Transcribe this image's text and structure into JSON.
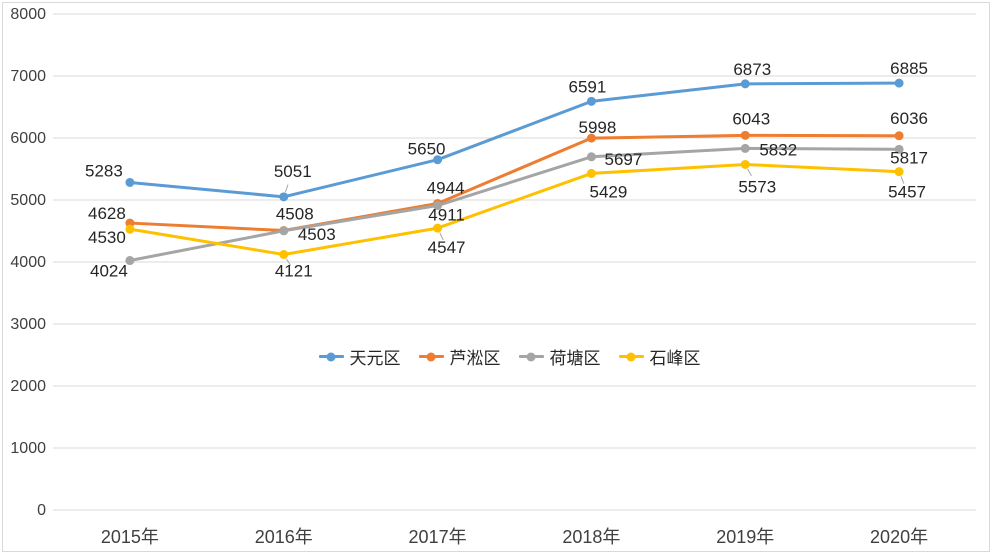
{
  "chart_data": {
    "type": "line",
    "categories": [
      "2015年",
      "2016年",
      "2017年",
      "2018年",
      "2019年",
      "2020年"
    ],
    "yticks": [
      0,
      1000,
      2000,
      3000,
      4000,
      5000,
      6000,
      7000,
      8000
    ],
    "ylim": [
      0,
      8000
    ],
    "grid": true,
    "data_labels": true,
    "legend_position": "center-middle",
    "series": [
      {
        "name": "天元区",
        "color": "#5B9BD5",
        "values": [
          5283,
          5051,
          5650,
          6591,
          6873,
          6885
        ]
      },
      {
        "name": "芦淞区",
        "color": "#ED7D31",
        "values": [
          4628,
          4508,
          4944,
          5998,
          6043,
          6036
        ]
      },
      {
        "name": "荷塘区",
        "color": "#A5A5A5",
        "values": [
          4024,
          4503,
          4911,
          5697,
          5832,
          5817
        ]
      },
      {
        "name": "石峰区",
        "color": "#FFC000",
        "values": [
          4530,
          4121,
          4547,
          5429,
          5573,
          5457
        ]
      }
    ]
  },
  "colors": {
    "background": "#FFFFFF",
    "border": "#D9D9D9",
    "gridline": "#D9D9D9",
    "axis_text": "#404040",
    "data_label_text": "#262626",
    "leader_line": "#A6A6A6"
  }
}
